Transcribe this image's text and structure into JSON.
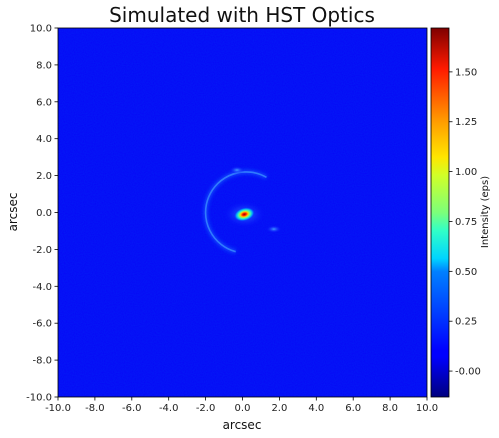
{
  "chart_data": {
    "type": "heatmap",
    "title": "Simulated with HST Optics",
    "xlabel": "arcsec",
    "ylabel": "arcsec",
    "xlim": [
      -10.0,
      10.0
    ],
    "ylim": [
      -10.0,
      10.0
    ],
    "xticks": [
      "-10.0",
      "-8.0",
      "-6.0",
      "-4.0",
      "-2.0",
      "0.0",
      "2.0",
      "4.0",
      "6.0",
      "8.0",
      "10.0"
    ],
    "yticks": [
      "10.0",
      "8.0",
      "6.0",
      "4.0",
      "2.0",
      "0.0",
      "-2.0",
      "-4.0",
      "-6.0",
      "-8.0",
      "-10.0"
    ],
    "colormap": "jet",
    "colorbar": {
      "label": "Intensity (eps)",
      "range": [
        -0.13,
        1.72
      ],
      "ticks": [
        "-0.00",
        "0.25",
        "0.50",
        "0.75",
        "1.00",
        "1.25",
        "1.50"
      ]
    },
    "features": [
      {
        "kind": "central-source",
        "x": 0.1,
        "y": -0.1,
        "peak": 1.72
      },
      {
        "kind": "arc",
        "center_x": 0.2,
        "center_y": 0.0,
        "radius": 2.2,
        "from_deg": 60,
        "to_deg": 255,
        "level": 0.25
      },
      {
        "kind": "knot",
        "x": -0.3,
        "y": 2.3,
        "level": 0.3
      },
      {
        "kind": "knot",
        "x": 1.7,
        "y": -0.9,
        "level": 0.35
      }
    ]
  }
}
